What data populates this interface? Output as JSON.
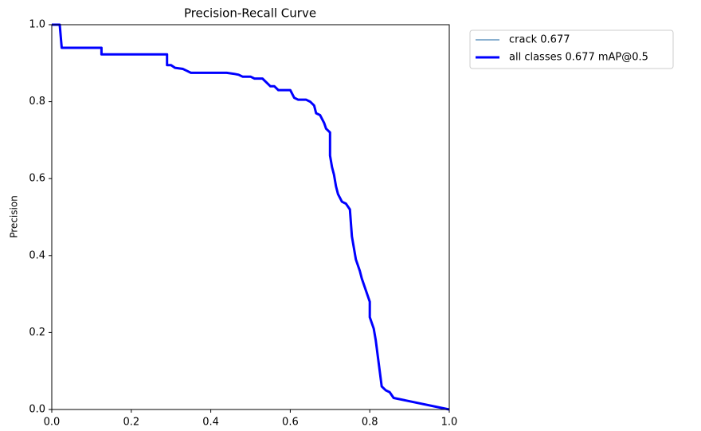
{
  "chart_data": {
    "type": "line",
    "title": "Precision-Recall Curve",
    "ylabel": "Precision",
    "x": [
      0,
      0.02,
      0.025,
      0.125,
      0.125,
      0.29,
      0.29,
      0.3,
      0.31,
      0.33,
      0.34,
      0.35,
      0.44,
      0.46,
      0.47,
      0.48,
      0.5,
      0.51,
      0.53,
      0.54,
      0.55,
      0.56,
      0.57,
      0.6,
      0.61,
      0.62,
      0.64,
      0.65,
      0.66,
      0.665,
      0.675,
      0.685,
      0.69,
      0.7,
      0.7,
      0.705,
      0.71,
      0.715,
      0.72,
      0.73,
      0.74,
      0.75,
      0.755,
      0.76,
      0.765,
      0.775,
      0.78,
      0.79,
      0.8,
      0.8,
      0.81,
      0.815,
      0.82,
      0.825,
      0.83,
      0.84,
      0.85,
      0.86,
      1.0
    ],
    "series": [
      {
        "name": "crack 0.677",
        "color": "#4682b4",
        "line_width": 1.2,
        "values": [
          1.0,
          1.0,
          0.94,
          0.94,
          0.923,
          0.923,
          0.895,
          0.895,
          0.888,
          0.885,
          0.88,
          0.875,
          0.875,
          0.872,
          0.87,
          0.865,
          0.865,
          0.86,
          0.86,
          0.85,
          0.84,
          0.84,
          0.83,
          0.83,
          0.81,
          0.805,
          0.805,
          0.8,
          0.79,
          0.77,
          0.765,
          0.745,
          0.73,
          0.72,
          0.66,
          0.63,
          0.61,
          0.58,
          0.56,
          0.54,
          0.535,
          0.52,
          0.45,
          0.42,
          0.39,
          0.36,
          0.34,
          0.31,
          0.28,
          0.24,
          0.21,
          0.18,
          0.14,
          0.1,
          0.06,
          0.05,
          0.045,
          0.03,
          0.0
        ]
      },
      {
        "name": "all classes 0.677 mAP@0.5",
        "color": "#0000ff",
        "line_width": 3,
        "values": [
          1.0,
          1.0,
          0.94,
          0.94,
          0.923,
          0.923,
          0.895,
          0.895,
          0.888,
          0.885,
          0.88,
          0.875,
          0.875,
          0.872,
          0.87,
          0.865,
          0.865,
          0.86,
          0.86,
          0.85,
          0.84,
          0.84,
          0.83,
          0.83,
          0.81,
          0.805,
          0.805,
          0.8,
          0.79,
          0.77,
          0.765,
          0.745,
          0.73,
          0.72,
          0.66,
          0.63,
          0.61,
          0.58,
          0.56,
          0.54,
          0.535,
          0.52,
          0.45,
          0.42,
          0.39,
          0.36,
          0.34,
          0.31,
          0.28,
          0.24,
          0.21,
          0.18,
          0.14,
          0.1,
          0.06,
          0.05,
          0.045,
          0.03,
          0.0
        ]
      }
    ],
    "xlim": [
      0,
      1
    ],
    "ylim": [
      0,
      1
    ],
    "xticks": [
      {
        "value": 0,
        "label": "0.0"
      },
      0.2,
      0.4,
      0.6,
      0.8,
      {
        "value": 1,
        "label": "1.0"
      }
    ],
    "yticks": [
      {
        "value": 0,
        "label": "0.0"
      },
      0.2,
      0.4,
      0.6,
      0.8,
      {
        "value": 1,
        "label": "1.0"
      }
    ],
    "legend": "outside upper right"
  }
}
